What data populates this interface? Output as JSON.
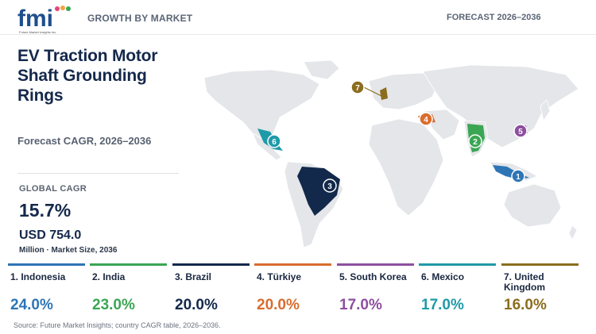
{
  "header": {
    "logo_text": "fmi",
    "logo_subtext": "Future Market Insights Inc.",
    "section_title": "GROWTH BY MARKET",
    "forecast_label": "FORECAST 2026–2036"
  },
  "left": {
    "title": "EV Traction Motor Shaft Grounding Rings",
    "subtitle": "Forecast CAGR, 2026–2036",
    "global_cagr_label": "GLOBAL CAGR",
    "global_cagr_value": "15.7%",
    "market_size": "USD 754.0",
    "market_size_note": "Million · Market Size, 2036"
  },
  "map": {
    "markers": [
      {
        "rank": "1",
        "country": "Indonesia",
        "color": "#2e75b6"
      },
      {
        "rank": "2",
        "country": "India",
        "color": "#3aa654"
      },
      {
        "rank": "3",
        "country": "Brazil",
        "color": "#13294b"
      },
      {
        "rank": "4",
        "country": "Türkiye",
        "color": "#d96d2e"
      },
      {
        "rank": "5",
        "country": "South Korea",
        "color": "#8e4fa0"
      },
      {
        "rank": "6",
        "country": "Mexico",
        "color": "#1f9aa8"
      },
      {
        "rank": "7",
        "country": "United Kingdom",
        "color": "#8b6d1d"
      }
    ]
  },
  "cards": [
    {
      "label": "1. Indonesia",
      "value": "24.0%",
      "color": "#2e75b6"
    },
    {
      "label": "2. India",
      "value": "23.0%",
      "color": "#3aa654"
    },
    {
      "label": "3. Brazil",
      "value": "20.0%",
      "color": "#13294b"
    },
    {
      "label": "4. Türkiye",
      "value": "20.0%",
      "color": "#d96d2e"
    },
    {
      "label": "5. South Korea",
      "value": "17.0%",
      "color": "#8e4fa0"
    },
    {
      "label": "6. Mexico",
      "value": "17.0%",
      "color": "#1f9aa8"
    },
    {
      "label": "7. United Kingdom",
      "value": "16.0%",
      "color": "#8b6d1d"
    }
  ],
  "source": "Source: Future Market Insights; country CAGR table, 2026–2036."
}
